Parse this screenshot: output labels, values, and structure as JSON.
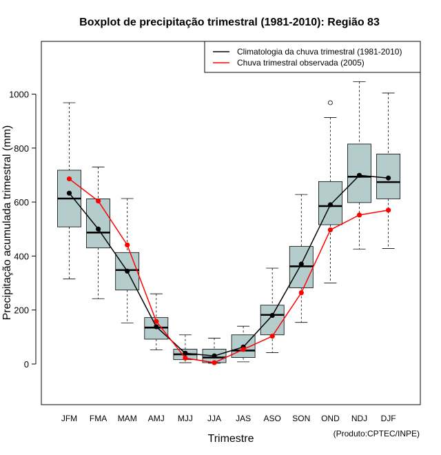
{
  "chart_data": {
    "type": "boxplot",
    "title": "Boxplot de precipitação trimestral (1981-2010): Região 83",
    "xlabel": "Trimestre",
    "ylabel": "Precipitação acumulada trimestral (mm)",
    "credit": "(Produto:CPTEC/INPE)",
    "ylim": [
      -150,
      1200
    ],
    "yticks": [
      0,
      200,
      400,
      600,
      800,
      1000
    ],
    "categories": [
      "JFM",
      "FMA",
      "MAM",
      "AMJ",
      "MJJ",
      "JJA",
      "JAS",
      "ASO",
      "SON",
      "OND",
      "NDJ",
      "DJF"
    ],
    "boxes": [
      {
        "min": 315,
        "q1": 508,
        "median": 613,
        "q3": 718,
        "max": 968,
        "outliers": []
      },
      {
        "min": 242,
        "q1": 430,
        "median": 487,
        "q3": 612,
        "max": 730,
        "outliers": []
      },
      {
        "min": 152,
        "q1": 274,
        "median": 348,
        "q3": 413,
        "max": 613,
        "outliers": []
      },
      {
        "min": 52,
        "q1": 92,
        "median": 135,
        "q3": 172,
        "max": 260,
        "outliers": []
      },
      {
        "min": 5,
        "q1": 16,
        "median": 36,
        "q3": 55,
        "max": 108,
        "outliers": []
      },
      {
        "min": 3,
        "q1": 5,
        "median": 24,
        "q3": 55,
        "max": 96,
        "outliers": []
      },
      {
        "min": 8,
        "q1": 24,
        "median": 50,
        "q3": 108,
        "max": 140,
        "outliers": []
      },
      {
        "min": 42,
        "q1": 108,
        "median": 182,
        "q3": 218,
        "max": 355,
        "outliers": []
      },
      {
        "min": 154,
        "q1": 282,
        "median": 362,
        "q3": 436,
        "max": 628,
        "outliers": []
      },
      {
        "min": 300,
        "q1": 516,
        "median": 585,
        "q3": 676,
        "max": 913,
        "outliers": [
          968
        ]
      },
      {
        "min": 426,
        "q1": 598,
        "median": 694,
        "q3": 815,
        "max": 1046,
        "outliers": []
      },
      {
        "min": 428,
        "q1": 612,
        "median": 674,
        "q3": 778,
        "max": 1004,
        "outliers": []
      }
    ],
    "series": [
      {
        "name": "Climatologia da chuva trimestral (1981-2010)",
        "color": "#000000",
        "values": [
          633,
          500,
          344,
          138,
          40,
          30,
          63,
          180,
          370,
          590,
          699,
          689
        ]
      },
      {
        "name": "Chuva trimestral observada (2005)",
        "color": "#ff0000",
        "values": [
          686,
          604,
          441,
          158,
          22,
          5,
          54,
          103,
          264,
          497,
          552,
          570
        ]
      }
    ],
    "legend_position": "top-right",
    "box_fill": "#b5cccc"
  }
}
